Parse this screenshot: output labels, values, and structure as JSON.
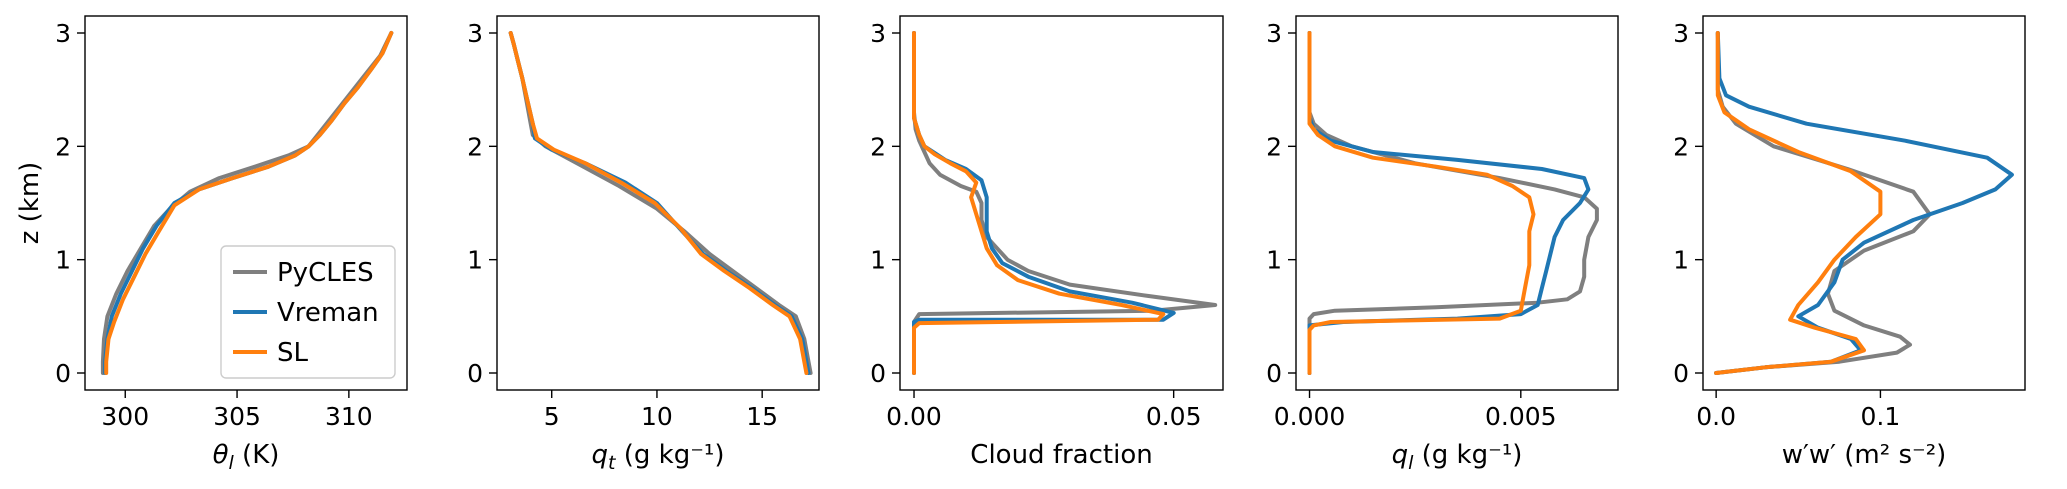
{
  "colors": {
    "PyCLES": "#7f7f7f",
    "Vreman": "#1f77b4",
    "SL": "#ff7f0e"
  },
  "legend": {
    "placement": "lower right",
    "panel": 0,
    "entries": [
      "PyCLES",
      "Vreman",
      "SL"
    ]
  },
  "chart_data": [
    {
      "type": "line",
      "xlabel": "θ_l (K)",
      "ylabel": "z (km)",
      "xlim": [
        298.2,
        312.6
      ],
      "ylim": [
        -0.15,
        3.15
      ],
      "xticks": [
        300,
        305,
        310
      ],
      "xtick_labels": [
        "300",
        "305",
        "310"
      ],
      "yticks": [
        0,
        1,
        2,
        3
      ],
      "ytick_labels": [
        "0",
        "1",
        "2",
        "3"
      ],
      "series": [
        {
          "name": "PyCLES",
          "x": [
            299.0,
            299.0,
            299.05,
            299.2,
            299.6,
            300.1,
            300.7,
            301.3,
            302.0,
            302.9,
            304.2,
            305.8,
            307.3,
            308.2,
            308.6,
            309.0,
            309.6,
            310.2,
            310.8,
            311.4,
            311.9
          ],
          "y": [
            0,
            0.1,
            0.3,
            0.5,
            0.7,
            0.9,
            1.1,
            1.3,
            1.45,
            1.6,
            1.72,
            1.82,
            1.92,
            2.0,
            2.1,
            2.2,
            2.35,
            2.5,
            2.65,
            2.8,
            3.0
          ]
        },
        {
          "name": "Vreman",
          "x": [
            299.1,
            299.1,
            299.2,
            299.4,
            299.8,
            300.3,
            300.8,
            301.4,
            302.2,
            303.3,
            304.8,
            306.4,
            307.6,
            308.2,
            308.7,
            309.2,
            309.8,
            310.4,
            311.0,
            311.5,
            311.9
          ],
          "y": [
            0,
            0.1,
            0.3,
            0.5,
            0.7,
            0.9,
            1.1,
            1.3,
            1.5,
            1.62,
            1.72,
            1.82,
            1.92,
            2.0,
            2.1,
            2.22,
            2.38,
            2.52,
            2.68,
            2.82,
            3.0
          ]
        },
        {
          "name": "SL",
          "x": [
            299.15,
            299.15,
            299.25,
            299.5,
            299.9,
            300.4,
            300.9,
            301.5,
            302.2,
            303.3,
            304.8,
            306.4,
            307.6,
            308.2,
            308.7,
            309.2,
            309.8,
            310.4,
            311.0,
            311.5,
            311.9
          ],
          "y": [
            0,
            0.1,
            0.3,
            0.45,
            0.65,
            0.85,
            1.05,
            1.25,
            1.48,
            1.62,
            1.72,
            1.82,
            1.92,
            2.0,
            2.1,
            2.22,
            2.38,
            2.52,
            2.68,
            2.82,
            3.0
          ]
        }
      ]
    },
    {
      "type": "line",
      "xlabel": "q_t (g kg⁻¹)",
      "ylabel": "",
      "xlim": [
        2.4,
        17.7
      ],
      "ylim": [
        -0.15,
        3.15
      ],
      "xticks": [
        5,
        10,
        15
      ],
      "xtick_labels": [
        "5",
        "10",
        "15"
      ],
      "yticks": [
        0,
        1,
        2,
        3
      ],
      "ytick_labels": [
        "0",
        "1",
        "2",
        "3"
      ],
      "series": [
        {
          "name": "PyCLES",
          "x": [
            17.3,
            17.2,
            17.0,
            16.6,
            15.8,
            14.7,
            13.6,
            12.5,
            11.3,
            10.0,
            8.2,
            6.2,
            4.7,
            4.1,
            4.0,
            3.8,
            3.6,
            3.4,
            3.2,
            3.05
          ],
          "y": [
            0,
            0.1,
            0.3,
            0.5,
            0.6,
            0.75,
            0.9,
            1.05,
            1.25,
            1.45,
            1.65,
            1.85,
            2.0,
            2.1,
            2.2,
            2.4,
            2.6,
            2.75,
            2.9,
            3.0
          ]
        },
        {
          "name": "Vreman",
          "x": [
            17.2,
            17.1,
            16.9,
            16.4,
            15.6,
            14.5,
            13.3,
            12.2,
            11.2,
            10.0,
            8.5,
            6.6,
            5.0,
            4.2,
            4.1,
            3.85,
            3.6,
            3.4,
            3.2,
            3.05
          ],
          "y": [
            0,
            0.1,
            0.3,
            0.5,
            0.6,
            0.75,
            0.9,
            1.05,
            1.25,
            1.5,
            1.68,
            1.85,
            1.97,
            2.07,
            2.2,
            2.4,
            2.6,
            2.75,
            2.9,
            3.0
          ]
        },
        {
          "name": "SL",
          "x": [
            17.1,
            17.0,
            16.8,
            16.3,
            15.5,
            14.4,
            13.2,
            12.1,
            11.1,
            9.9,
            8.3,
            6.6,
            5.1,
            4.3,
            4.1,
            3.85,
            3.6,
            3.4,
            3.2,
            3.05
          ],
          "y": [
            0,
            0.1,
            0.3,
            0.5,
            0.6,
            0.75,
            0.9,
            1.05,
            1.28,
            1.5,
            1.68,
            1.85,
            1.97,
            2.07,
            2.2,
            2.4,
            2.6,
            2.75,
            2.9,
            3.0
          ]
        }
      ]
    },
    {
      "type": "line",
      "xlabel": "Cloud fraction",
      "ylabel": "",
      "xlim": [
        -0.0027,
        0.0595
      ],
      "ylim": [
        -0.15,
        3.15
      ],
      "xticks": [
        0,
        0.05
      ],
      "xtick_labels": [
        "0.00",
        "0.05"
      ],
      "yticks": [
        0,
        1,
        2,
        3
      ],
      "ytick_labels": [
        "0",
        "1",
        "2",
        "3"
      ],
      "series": [
        {
          "name": "PyCLES",
          "x": [
            0,
            0,
            0,
            0.001,
            0.046,
            0.058,
            0.045,
            0.03,
            0.022,
            0.018,
            0.016,
            0.014,
            0.013,
            0.013,
            0.012,
            0.009,
            0.005,
            0.003,
            0.002,
            0.001,
            0.0003,
            0,
            0
          ],
          "y": [
            0,
            0.3,
            0.45,
            0.52,
            0.55,
            0.6,
            0.68,
            0.78,
            0.9,
            1.0,
            1.1,
            1.2,
            1.35,
            1.5,
            1.6,
            1.65,
            1.75,
            1.85,
            1.95,
            2.05,
            2.15,
            2.3,
            3.0
          ]
        },
        {
          "name": "Vreman",
          "x": [
            0,
            0,
            0,
            0,
            0.001,
            0.048,
            0.05,
            0.042,
            0.03,
            0.022,
            0.017,
            0.015,
            0.014,
            0.014,
            0.014,
            0.013,
            0.01,
            0.006,
            0.004,
            0.002,
            0.001,
            0,
            0
          ],
          "y": [
            0,
            0.3,
            0.38,
            0.45,
            0.47,
            0.47,
            0.53,
            0.62,
            0.72,
            0.85,
            0.97,
            1.1,
            1.25,
            1.4,
            1.55,
            1.7,
            1.8,
            1.88,
            1.94,
            2.0,
            2.1,
            2.25,
            3.0
          ]
        },
        {
          "name": "SL",
          "x": [
            0,
            0,
            0,
            0.001,
            0.047,
            0.048,
            0.04,
            0.028,
            0.02,
            0.016,
            0.014,
            0.013,
            0.012,
            0.011,
            0.012,
            0.01,
            0.007,
            0.004,
            0.002,
            0.001,
            0,
            0
          ],
          "y": [
            0,
            0.3,
            0.4,
            0.44,
            0.47,
            0.52,
            0.6,
            0.7,
            0.82,
            0.95,
            1.1,
            1.25,
            1.4,
            1.55,
            1.68,
            1.78,
            1.85,
            1.93,
            2.0,
            2.1,
            2.25,
            3.0
          ]
        }
      ]
    },
    {
      "type": "line",
      "xlabel": "q_l (g kg⁻¹)",
      "ylabel": "",
      "xlim": [
        -0.00032,
        0.0073
      ],
      "ylim": [
        -0.15,
        3.15
      ],
      "xticks": [
        0,
        0.005
      ],
      "xtick_labels": [
        "0.000",
        "0.005"
      ],
      "yticks": [
        0,
        1,
        2,
        3
      ],
      "ytick_labels": [
        "0",
        "1",
        "2",
        "3"
      ],
      "series": [
        {
          "name": "PyCLES",
          "x": [
            0,
            0,
            0,
            0.0001,
            0.0006,
            0.003,
            0.0054,
            0.0061,
            0.0064,
            0.0065,
            0.0065,
            0.0066,
            0.0068,
            0.0068,
            0.0065,
            0.0058,
            0.0045,
            0.0025,
            0.001,
            0.0004,
            0.0001,
            0,
            0
          ],
          "y": [
            0,
            0.3,
            0.48,
            0.52,
            0.55,
            0.58,
            0.62,
            0.65,
            0.72,
            0.85,
            1.0,
            1.2,
            1.35,
            1.45,
            1.55,
            1.62,
            1.72,
            1.85,
            2.0,
            2.1,
            2.2,
            2.3,
            3.0
          ]
        },
        {
          "name": "Vreman",
          "x": [
            0,
            0,
            0,
            0,
            0.0008,
            0.0035,
            0.005,
            0.0054,
            0.0055,
            0.0056,
            0.0057,
            0.0058,
            0.006,
            0.0064,
            0.0066,
            0.0065,
            0.0055,
            0.0035,
            0.0015,
            0.0005,
            0.0001,
            0,
            0
          ],
          "y": [
            0,
            0.3,
            0.38,
            0.42,
            0.45,
            0.48,
            0.52,
            0.6,
            0.75,
            0.9,
            1.05,
            1.2,
            1.35,
            1.5,
            1.62,
            1.72,
            1.8,
            1.88,
            1.95,
            2.05,
            2.15,
            2.25,
            3.0
          ]
        },
        {
          "name": "SL",
          "x": [
            0,
            0,
            0,
            0.0001,
            0.0005,
            0.0045,
            0.005,
            0.0051,
            0.0052,
            0.0052,
            0.0052,
            0.0053,
            0.0052,
            0.0048,
            0.0042,
            0.003,
            0.0015,
            0.0006,
            0.0002,
            0,
            0
          ],
          "y": [
            0,
            0.3,
            0.38,
            0.42,
            0.45,
            0.48,
            0.55,
            0.75,
            0.95,
            1.1,
            1.25,
            1.4,
            1.55,
            1.65,
            1.75,
            1.82,
            1.9,
            2.0,
            2.1,
            2.2,
            3.0
          ]
        }
      ]
    },
    {
      "type": "line",
      "xlabel": "w′w′ (m² s⁻²)",
      "ylabel": "",
      "xlim": [
        -0.008,
        0.188
      ],
      "ylim": [
        -0.15,
        3.15
      ],
      "xticks": [
        0,
        0.1
      ],
      "xtick_labels": [
        "0.0",
        "0.1"
      ],
      "yticks": [
        0,
        1,
        2,
        3
      ],
      "ytick_labels": [
        "0",
        "1",
        "2",
        "3"
      ],
      "series": [
        {
          "name": "PyCLES",
          "x": [
            0,
            0.03,
            0.075,
            0.11,
            0.118,
            0.112,
            0.09,
            0.072,
            0.068,
            0.072,
            0.09,
            0.12,
            0.13,
            0.12,
            0.08,
            0.035,
            0.012,
            0.004,
            0.001,
            0.001
          ],
          "y": [
            0,
            0.05,
            0.1,
            0.18,
            0.25,
            0.32,
            0.42,
            0.55,
            0.7,
            0.9,
            1.08,
            1.25,
            1.4,
            1.6,
            1.8,
            2.0,
            2.2,
            2.35,
            2.5,
            3.0
          ]
        },
        {
          "name": "Vreman",
          "x": [
            0,
            0.03,
            0.07,
            0.088,
            0.082,
            0.062,
            0.05,
            0.062,
            0.072,
            0.077,
            0.09,
            0.12,
            0.15,
            0.17,
            0.18,
            0.165,
            0.115,
            0.055,
            0.02,
            0.006,
            0.002,
            0.001
          ],
          "y": [
            0,
            0.05,
            0.1,
            0.2,
            0.3,
            0.4,
            0.5,
            0.6,
            0.8,
            1.0,
            1.15,
            1.35,
            1.5,
            1.62,
            1.75,
            1.9,
            2.05,
            2.2,
            2.35,
            2.45,
            2.6,
            3.0
          ]
        },
        {
          "name": "SL",
          "x": [
            0,
            0.03,
            0.07,
            0.09,
            0.085,
            0.06,
            0.045,
            0.05,
            0.062,
            0.072,
            0.085,
            0.1,
            0.1,
            0.082,
            0.05,
            0.02,
            0.005,
            0.001,
            0.001
          ],
          "y": [
            0,
            0.05,
            0.1,
            0.2,
            0.3,
            0.4,
            0.47,
            0.6,
            0.8,
            1.0,
            1.2,
            1.4,
            1.6,
            1.78,
            1.95,
            2.15,
            2.3,
            2.45,
            3.0
          ]
        }
      ]
    }
  ]
}
